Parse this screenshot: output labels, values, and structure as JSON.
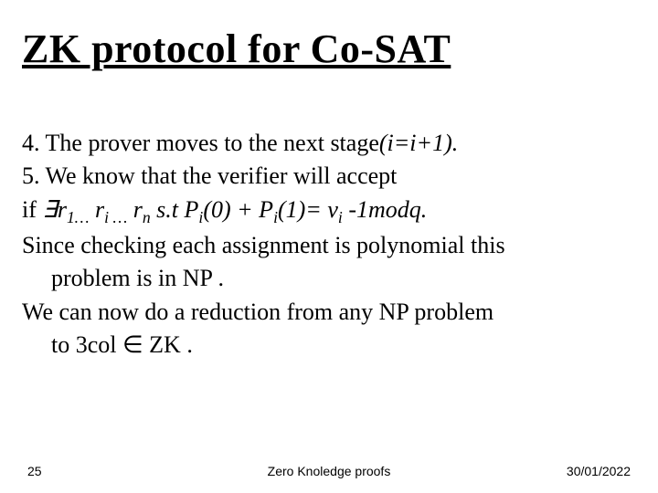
{
  "title": "ZK protocol for  Co-SAT",
  "body": {
    "line1_prefix": "4. The prover moves to the next stage",
    "line1_italic": "(i=i+1).",
    "line2": "5. We know that the verifier will accept",
    "line3_prefix": "if ",
    "line3_exists": "∃",
    "line3_r": "r",
    "line3_sub1": "1…",
    "line3_subi": "i …",
    "line3_subn": "n",
    "line3_mid": "  s.t  P",
    "line3_subi2": "i",
    "line3_zero": "(0) + P",
    "line3_one": "(1)= v",
    "line3_end": " -1modq.",
    "line4a": "Since checking each assignment is polynomial this",
    "line4b": "problem is in NP .",
    "line5a": "We can now do a reduction from any NP problem",
    "line5b_prefix": "to 3col ",
    "line5b_in": "∈",
    "line5b_suffix": " ZK ."
  },
  "footer": {
    "page": "25",
    "center": "Zero Knoledge proofs",
    "date": "30/01/2022"
  },
  "style": {
    "title_fontsize": 44,
    "body_fontsize": 26,
    "footer_fontsize": 14,
    "text_color": "#000000",
    "background_color": "#ffffff"
  }
}
